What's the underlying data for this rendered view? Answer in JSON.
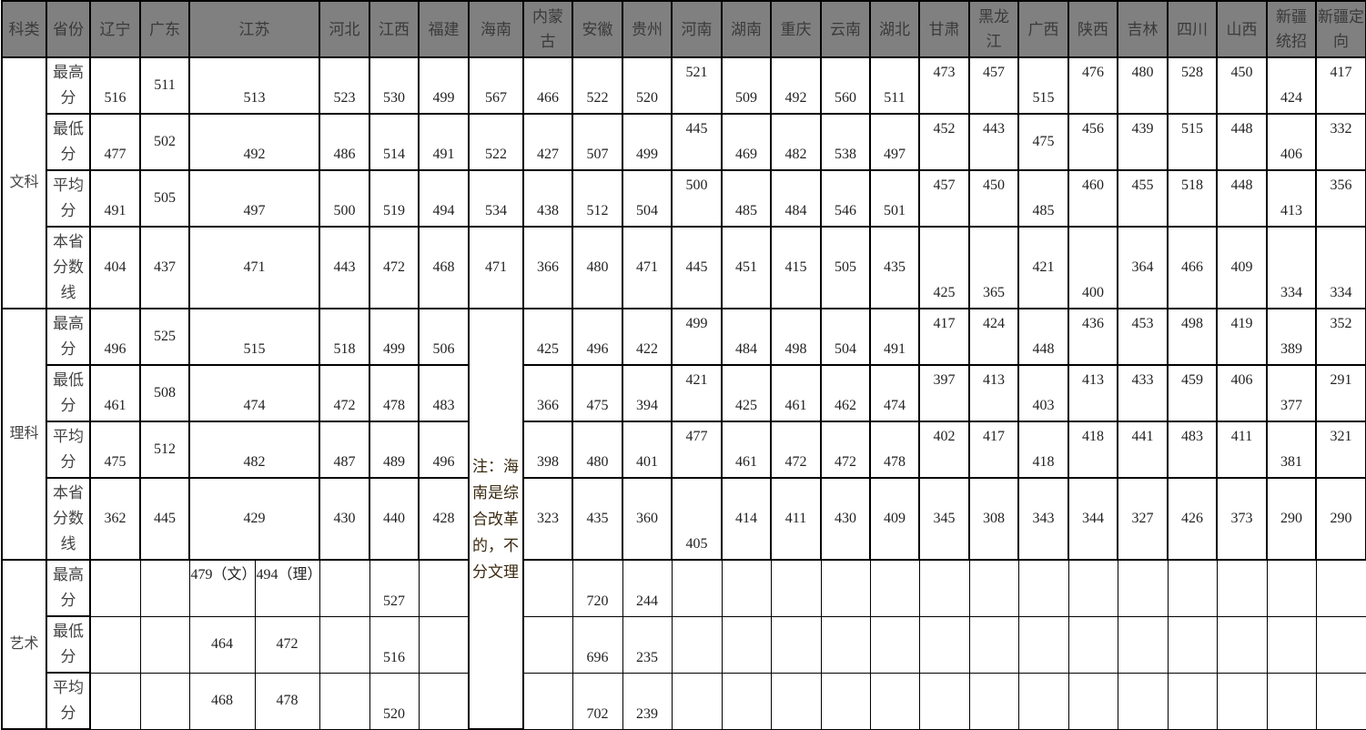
{
  "header": {
    "subject": "科类",
    "province": "省份",
    "provinces": [
      "辽宁",
      "广东",
      "江苏",
      "河北",
      "江西",
      "福建",
      "海南",
      "内蒙古",
      "安徽",
      "贵州",
      "河南",
      "湖南",
      "重庆",
      "云南",
      "湖北",
      "甘肃",
      "黑龙江",
      "广西",
      "陕西",
      "吉林",
      "四川",
      "山西",
      "新疆统招",
      "新疆定向"
    ]
  },
  "sections": [
    {
      "subject": "文科",
      "rows": [
        {
          "label": "最高分",
          "values": [
            "516",
            "511",
            "513",
            "523",
            "530",
            "499",
            "567",
            "466",
            "522",
            "520",
            "521",
            "509",
            "492",
            "560",
            "511",
            "473",
            "457",
            "515",
            "476",
            "480",
            "528",
            "450",
            "424",
            "417"
          ]
        },
        {
          "label": "最低分",
          "values": [
            "477",
            "502",
            "492",
            "486",
            "514",
            "491",
            "522",
            "427",
            "507",
            "499",
            "445",
            "469",
            "482",
            "538",
            "497",
            "452",
            "443",
            "475",
            "456",
            "439",
            "515",
            "448",
            "406",
            "332"
          ]
        },
        {
          "label": "平均分",
          "values": [
            "491",
            "505",
            "497",
            "500",
            "519",
            "494",
            "534",
            "438",
            "512",
            "504",
            "500",
            "485",
            "484",
            "546",
            "501",
            "457",
            "450",
            "485",
            "460",
            "455",
            "518",
            "448",
            "413",
            "356"
          ]
        },
        {
          "label": "本省分数线",
          "values": [
            "404",
            "437",
            "471",
            "443",
            "472",
            "468",
            "471",
            "366",
            "480",
            "471",
            "445",
            "451",
            "415",
            "505",
            "435",
            "425",
            "365",
            "421",
            "400",
            "364",
            "466",
            "409",
            "334",
            "334"
          ]
        }
      ]
    },
    {
      "subject": "理科",
      "rows": [
        {
          "label": "最高分",
          "values": [
            "496",
            "525",
            "515",
            "518",
            "499",
            "506",
            "",
            "425",
            "496",
            "422",
            "499",
            "484",
            "498",
            "504",
            "491",
            "417",
            "424",
            "448",
            "436",
            "453",
            "498",
            "419",
            "389",
            "352"
          ]
        },
        {
          "label": "最低分",
          "values": [
            "461",
            "508",
            "474",
            "472",
            "478",
            "483",
            "",
            "366",
            "475",
            "394",
            "421",
            "425",
            "461",
            "462",
            "474",
            "397",
            "413",
            "403",
            "413",
            "433",
            "459",
            "406",
            "377",
            "291"
          ]
        },
        {
          "label": "平均分",
          "values": [
            "475",
            "512",
            "482",
            "487",
            "489",
            "496",
            "",
            "398",
            "480",
            "401",
            "477",
            "461",
            "472",
            "472",
            "478",
            "402",
            "417",
            "418",
            "418",
            "441",
            "483",
            "411",
            "381",
            "321"
          ]
        },
        {
          "label": "本省分数线",
          "values": [
            "362",
            "445",
            "429",
            "430",
            "440",
            "428",
            "",
            "323",
            "435",
            "360",
            "405",
            "414",
            "411",
            "430",
            "409",
            "345",
            "308",
            "343",
            "344",
            "327",
            "426",
            "373",
            "290",
            "290"
          ]
        }
      ]
    },
    {
      "subject": "艺术",
      "rows": [
        {
          "label": "最高分",
          "jiangsu": [
            "479（文）",
            "494（理）"
          ],
          "values": [
            "",
            "",
            "",
            "",
            "527",
            "",
            "",
            "",
            "720",
            "244",
            "",
            "",
            "",
            "",
            "",
            "",
            "",
            "",
            "",
            "",
            "",
            "",
            "",
            ""
          ]
        },
        {
          "label": "最低分",
          "jiangsu": [
            "464",
            "472"
          ],
          "values": [
            "",
            "",
            "",
            "",
            "516",
            "",
            "",
            "",
            "696",
            "235",
            "",
            "",
            "",
            "",
            "",
            "",
            "",
            "",
            "",
            "",
            "",
            "",
            "",
            ""
          ]
        },
        {
          "label": "平均分",
          "jiangsu": [
            "468",
            "478"
          ],
          "values": [
            "",
            "",
            "",
            "",
            "520",
            "",
            "",
            "",
            "702",
            "239",
            "",
            "",
            "",
            "",
            "",
            "",
            "",
            "",
            "",
            "",
            "",
            "",
            "",
            ""
          ]
        }
      ]
    }
  ],
  "hainan_note": "注：海南是综合改革的，不分文理"
}
